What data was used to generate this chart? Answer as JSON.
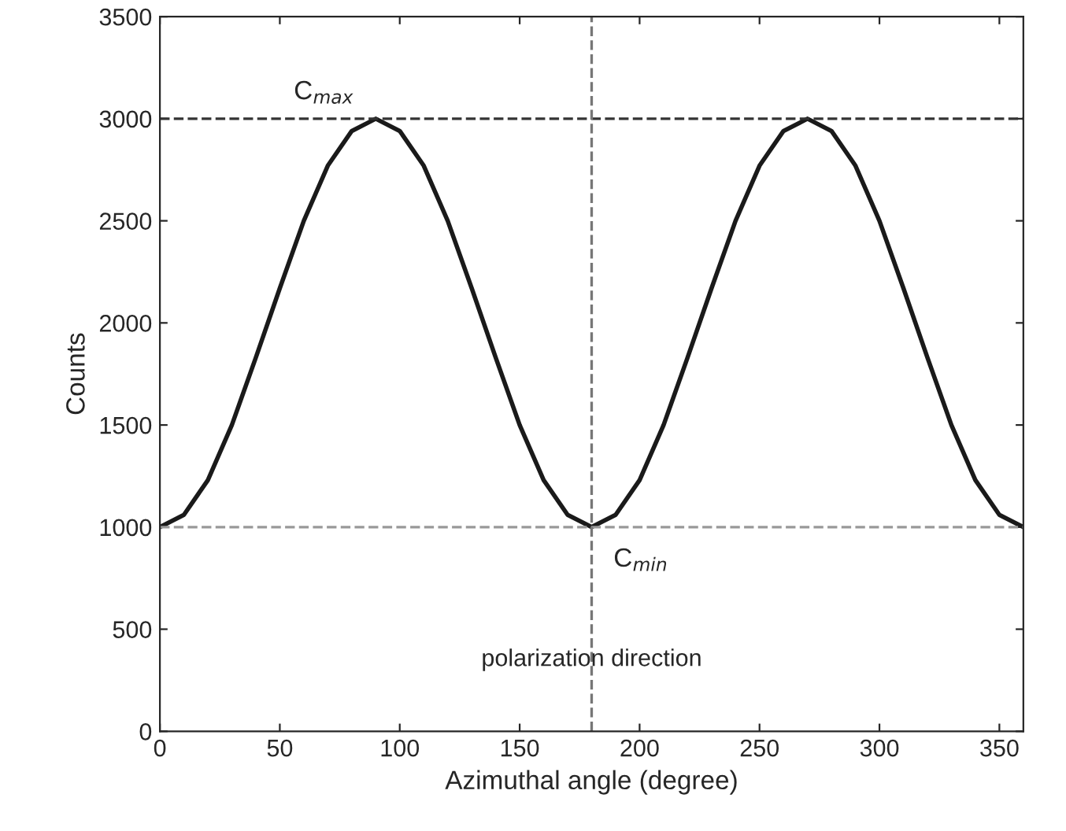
{
  "chart_data": {
    "type": "line",
    "xlabel": "Azimuthal angle (degree)",
    "ylabel": "Counts",
    "x": [
      0,
      10,
      20,
      30,
      40,
      50,
      60,
      70,
      80,
      90,
      100,
      110,
      120,
      130,
      140,
      150,
      160,
      170,
      180,
      190,
      200,
      210,
      220,
      230,
      240,
      250,
      260,
      270,
      280,
      290,
      300,
      310,
      320,
      330,
      340,
      350,
      360
    ],
    "series": [
      {
        "color": "#1a1a1a",
        "values": [
          1000,
          1060,
          1230,
          1500,
          1830,
          2170,
          2500,
          2770,
          2940,
          3000,
          2940,
          2770,
          2500,
          2170,
          1830,
          1500,
          1230,
          1060,
          1000,
          1060,
          1230,
          1500,
          1830,
          2170,
          2500,
          2770,
          2940,
          3000,
          2940,
          2770,
          2500,
          2170,
          1830,
          1500,
          1230,
          1060,
          1000
        ]
      }
    ],
    "xlim": [
      0,
      360
    ],
    "xticks": [
      0,
      50,
      100,
      150,
      200,
      250,
      300,
      350
    ],
    "ylim": [
      0,
      3500
    ],
    "yticks": [
      0,
      500,
      1000,
      1500,
      2000,
      2500,
      3000,
      3500
    ],
    "ref_lines": [
      {
        "axis": "y",
        "value": 3000,
        "color": "#333333",
        "line_style": "dashed"
      },
      {
        "axis": "y",
        "value": 1000,
        "color": "#999999",
        "line_style": "dashed"
      },
      {
        "axis": "x",
        "value": 180,
        "color": "#777777",
        "line_style": "dashed",
        "label": "polarization direction"
      }
    ],
    "annotations": [
      {
        "text": "C$_{max}$",
        "x": 90,
        "y": 3000
      },
      {
        "text": "C$_{min}$",
        "x": 180,
        "y": 1000
      }
    ],
    "grid": false,
    "legend": false,
    "marker": "none",
    "line_style": "solid"
  }
}
